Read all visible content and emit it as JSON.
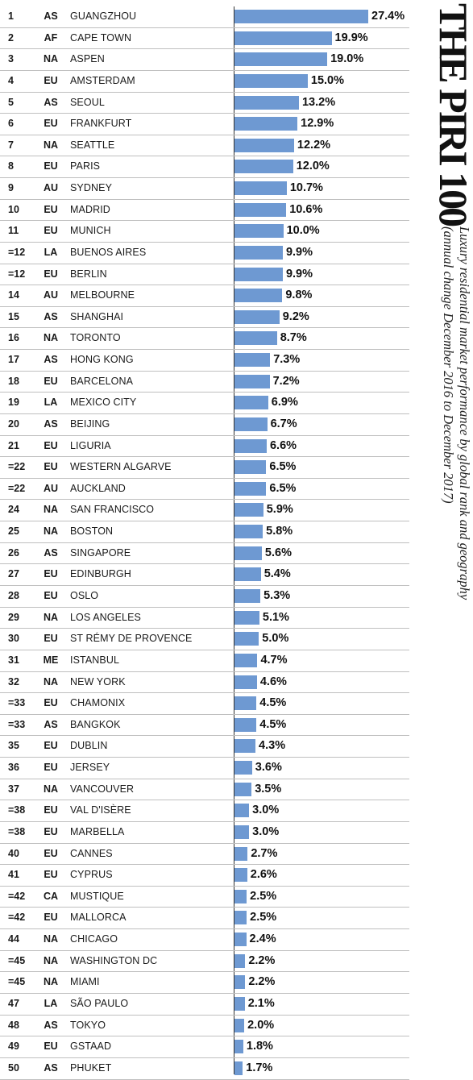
{
  "title": "THE PIRI 100",
  "subtitle_lines": [
    "Luxury residential market performance by global rank and geography",
    "(annual change December 2016 to December 2017)"
  ],
  "chart_data": {
    "type": "bar",
    "orientation": "horizontal",
    "value_suffix": "%",
    "bar_color": "#6e99d2",
    "grid": false,
    "columns": [
      "rank",
      "region",
      "city",
      "value"
    ],
    "rows": [
      {
        "rank": "1",
        "region": "AS",
        "city": "GUANGZHOU",
        "value": 27.4
      },
      {
        "rank": "2",
        "region": "AF",
        "city": "CAPE TOWN",
        "value": 19.9
      },
      {
        "rank": "3",
        "region": "NA",
        "city": "ASPEN",
        "value": 19.0
      },
      {
        "rank": "4",
        "region": "EU",
        "city": "AMSTERDAM",
        "value": 15.0
      },
      {
        "rank": "5",
        "region": "AS",
        "city": "SEOUL",
        "value": 13.2
      },
      {
        "rank": "6",
        "region": "EU",
        "city": "FRANKFURT",
        "value": 12.9
      },
      {
        "rank": "7",
        "region": "NA",
        "city": "SEATTLE",
        "value": 12.2
      },
      {
        "rank": "8",
        "region": "EU",
        "city": "PARIS",
        "value": 12.0
      },
      {
        "rank": "9",
        "region": "AU",
        "city": "SYDNEY",
        "value": 10.7
      },
      {
        "rank": "10",
        "region": "EU",
        "city": "MADRID",
        "value": 10.6
      },
      {
        "rank": "11",
        "region": "EU",
        "city": "MUNICH",
        "value": 10.0
      },
      {
        "rank": "=12",
        "region": "LA",
        "city": "BUENOS AIRES",
        "value": 9.9
      },
      {
        "rank": "=12",
        "region": "EU",
        "city": "BERLIN",
        "value": 9.9
      },
      {
        "rank": "14",
        "region": "AU",
        "city": "MELBOURNE",
        "value": 9.8
      },
      {
        "rank": "15",
        "region": "AS",
        "city": "SHANGHAI",
        "value": 9.2
      },
      {
        "rank": "16",
        "region": "NA",
        "city": "TORONTO",
        "value": 8.7
      },
      {
        "rank": "17",
        "region": "AS",
        "city": "HONG KONG",
        "value": 7.3
      },
      {
        "rank": "18",
        "region": "EU",
        "city": "BARCELONA",
        "value": 7.2
      },
      {
        "rank": "19",
        "region": "LA",
        "city": "MEXICO CITY",
        "value": 6.9
      },
      {
        "rank": "20",
        "region": "AS",
        "city": "BEIJING",
        "value": 6.7
      },
      {
        "rank": "21",
        "region": "EU",
        "city": "LIGURIA",
        "value": 6.6
      },
      {
        "rank": "=22",
        "region": "EU",
        "city": "WESTERN ALGARVE",
        "value": 6.5
      },
      {
        "rank": "=22",
        "region": "AU",
        "city": "AUCKLAND",
        "value": 6.5
      },
      {
        "rank": "24",
        "region": "NA",
        "city": "SAN FRANCISCO",
        "value": 5.9
      },
      {
        "rank": "25",
        "region": "NA",
        "city": "BOSTON",
        "value": 5.8
      },
      {
        "rank": "26",
        "region": "AS",
        "city": "SINGAPORE",
        "value": 5.6
      },
      {
        "rank": "27",
        "region": "EU",
        "city": "EDINBURGH",
        "value": 5.4
      },
      {
        "rank": "28",
        "region": "EU",
        "city": "OSLO",
        "value": 5.3
      },
      {
        "rank": "29",
        "region": "NA",
        "city": "LOS ANGELES",
        "value": 5.1
      },
      {
        "rank": "30",
        "region": "EU",
        "city": "ST RÉMY DE PROVENCE",
        "value": 5.0
      },
      {
        "rank": "31",
        "region": "ME",
        "city": "ISTANBUL",
        "value": 4.7
      },
      {
        "rank": "32",
        "region": "NA",
        "city": "NEW YORK",
        "value": 4.6
      },
      {
        "rank": "=33",
        "region": "EU",
        "city": "CHAMONIX",
        "value": 4.5
      },
      {
        "rank": "=33",
        "region": "AS",
        "city": "BANGKOK",
        "value": 4.5
      },
      {
        "rank": "35",
        "region": "EU",
        "city": "DUBLIN",
        "value": 4.3
      },
      {
        "rank": "36",
        "region": "EU",
        "city": "JERSEY",
        "value": 3.6
      },
      {
        "rank": "37",
        "region": "NA",
        "city": "VANCOUVER",
        "value": 3.5
      },
      {
        "rank": "=38",
        "region": "EU",
        "city": "VAL D'ISÈRE",
        "value": 3.0
      },
      {
        "rank": "=38",
        "region": "EU",
        "city": "MARBELLA",
        "value": 3.0
      },
      {
        "rank": "40",
        "region": "EU",
        "city": "CANNES",
        "value": 2.7
      },
      {
        "rank": "41",
        "region": "EU",
        "city": "CYPRUS",
        "value": 2.6
      },
      {
        "rank": "=42",
        "region": "CA",
        "city": "MUSTIQUE",
        "value": 2.5
      },
      {
        "rank": "=42",
        "region": "EU",
        "city": "MALLORCA",
        "value": 2.5
      },
      {
        "rank": "44",
        "region": "NA",
        "city": "CHICAGO",
        "value": 2.4
      },
      {
        "rank": "=45",
        "region": "NA",
        "city": "WASHINGTON DC",
        "value": 2.2
      },
      {
        "rank": "=45",
        "region": "NA",
        "city": "MIAMI",
        "value": 2.2
      },
      {
        "rank": "47",
        "region": "LA",
        "city": "SÃO PAULO",
        "value": 2.1
      },
      {
        "rank": "48",
        "region": "AS",
        "city": "TOKYO",
        "value": 2.0
      },
      {
        "rank": "49",
        "region": "EU",
        "city": "GSTAAD",
        "value": 1.8
      },
      {
        "rank": "50",
        "region": "AS",
        "city": "PHUKET",
        "value": 1.7
      }
    ]
  }
}
